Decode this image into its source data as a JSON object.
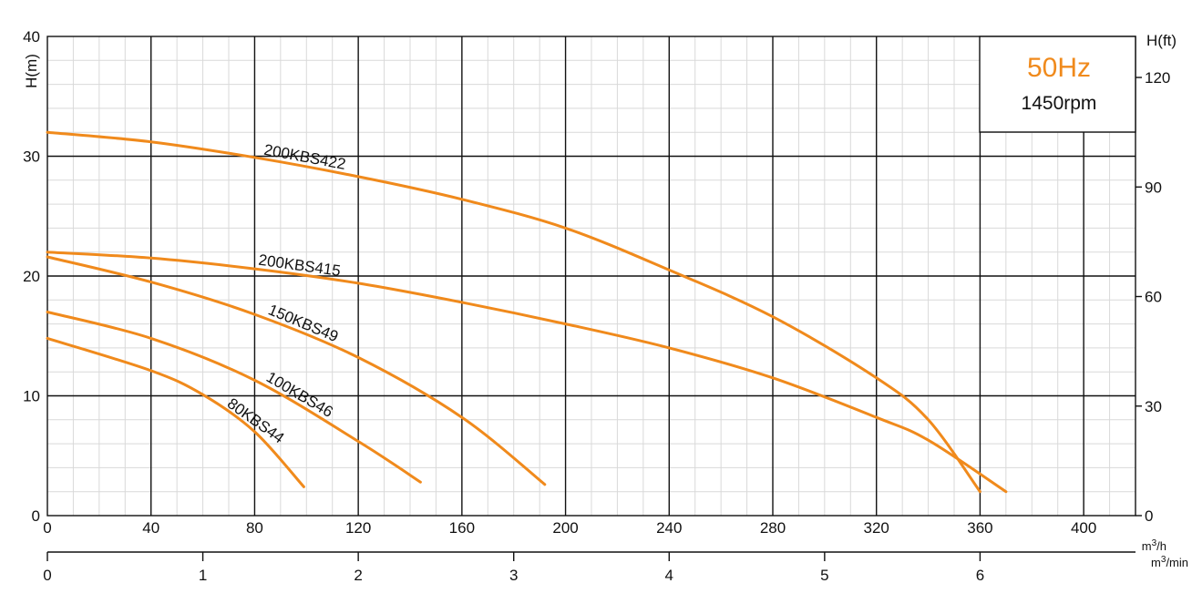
{
  "chart_data": {
    "type": "line",
    "title": "",
    "xlabel": "m3/h",
    "xlabel_secondary": "m3/min",
    "ylabel": "H(m)",
    "ylabel_right": "H(ft)",
    "xlim": [
      0,
      420
    ],
    "ylim": [
      0,
      40
    ],
    "x_ticks": [
      0,
      40,
      80,
      120,
      160,
      200,
      240,
      280,
      320,
      360,
      400
    ],
    "x_secondary_ticks": [
      0,
      1,
      2,
      3,
      4,
      5,
      6
    ],
    "y_ticks": [
      0,
      10,
      20,
      30,
      40
    ],
    "y_right_ticks": [
      0,
      30,
      60,
      90,
      120
    ],
    "grid": true,
    "curve_color": "#f08a1c",
    "badge": {
      "frequency": "50Hz",
      "speed": "1450rpm",
      "frequency_color": "#f08a1c"
    },
    "series": [
      {
        "name": "200KBS422",
        "x": [
          0,
          40,
          80,
          120,
          160,
          200,
          240,
          280,
          320,
          340,
          360
        ],
        "y": [
          32,
          31.2,
          29.9,
          28.3,
          26.4,
          24,
          20.5,
          16.6,
          11.5,
          8,
          2
        ]
      },
      {
        "name": "200KBS415",
        "x": [
          0,
          40,
          80,
          120,
          160,
          200,
          240,
          280,
          320,
          340,
          370
        ],
        "y": [
          22,
          21.5,
          20.6,
          19.4,
          17.8,
          16,
          14,
          11.5,
          8.2,
          6.3,
          2
        ]
      },
      {
        "name": "150KBS49",
        "x": [
          0,
          40,
          80,
          120,
          160,
          192
        ],
        "y": [
          21.6,
          19.5,
          16.8,
          13.2,
          8.2,
          2.6
        ]
      },
      {
        "name": "100KBS46",
        "x": [
          0,
          40,
          80,
          120,
          144
        ],
        "y": [
          17,
          14.8,
          11.3,
          6.2,
          2.8
        ]
      },
      {
        "name": "80KBS44",
        "x": [
          0,
          40,
          60,
          80,
          99
        ],
        "y": [
          14.8,
          12.1,
          10.1,
          7,
          2.4
        ]
      }
    ]
  }
}
